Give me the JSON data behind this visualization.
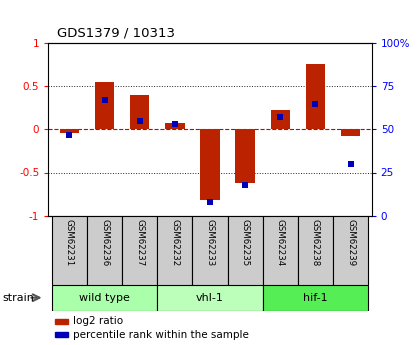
{
  "title": "GDS1379 / 10313",
  "samples": [
    "GSM62231",
    "GSM62236",
    "GSM62237",
    "GSM62232",
    "GSM62233",
    "GSM62235",
    "GSM62234",
    "GSM62238",
    "GSM62239"
  ],
  "log2_ratio": [
    -0.04,
    0.55,
    0.4,
    0.07,
    -0.82,
    -0.62,
    0.22,
    0.76,
    -0.08
  ],
  "percentile_rank": [
    47,
    67,
    55,
    53,
    8,
    18,
    57,
    65,
    30
  ],
  "groups": [
    {
      "label": "wild type",
      "start": 0,
      "end": 3,
      "color": "#aaffaa"
    },
    {
      "label": "vhl-1",
      "start": 3,
      "end": 6,
      "color": "#bbffbb"
    },
    {
      "label": "hif-1",
      "start": 6,
      "end": 9,
      "color": "#55ee55"
    }
  ],
  "ylim_left": [
    -1.0,
    1.0
  ],
  "ylim_right": [
    0,
    100
  ],
  "yticks_left": [
    -1,
    -0.5,
    0,
    0.5,
    1
  ],
  "yticks_right": [
    0,
    25,
    50,
    75,
    100
  ],
  "bar_color": "#bb2200",
  "dot_color": "#0000bb",
  "zero_line_color": "#cc0000",
  "grid_color": "#222222",
  "sample_box_color": "#cccccc",
  "fig_width": 4.2,
  "fig_height": 3.45,
  "bar_width": 0.55
}
